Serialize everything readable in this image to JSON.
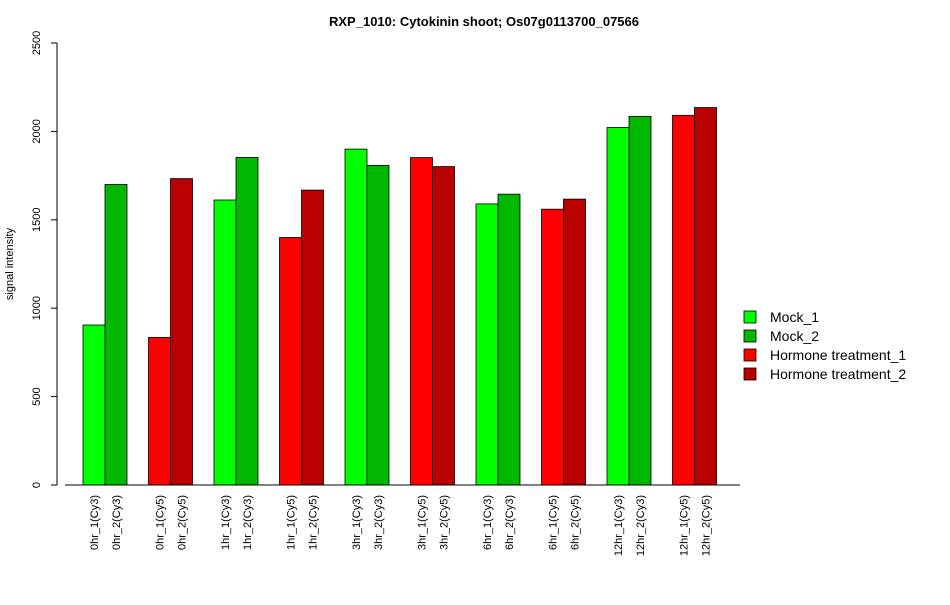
{
  "chart_data": {
    "type": "bar",
    "title": "RXP_1010: Cytokinin shoot; Os07g0113700_07566",
    "xlabel": "",
    "ylabel": "signal intensity",
    "ylim": [
      0,
      2500
    ],
    "yticks": [
      0,
      500,
      1000,
      1500,
      2000,
      2500
    ],
    "grid": false,
    "legend_position": "right",
    "series_styles": [
      {
        "name": "Mock_1",
        "color": "#00ff00"
      },
      {
        "name": "Mock_2",
        "color": "#00b800"
      },
      {
        "name": "Hormone treatment_1",
        "color": "#ff0000"
      },
      {
        "name": "Hormone treatment_2",
        "color": "#b80000"
      }
    ],
    "groups": [
      {
        "bars": [
          {
            "label": "0hr_1(Cy3)",
            "value": 905,
            "series": 0
          },
          {
            "label": "0hr_2(Cy3)",
            "value": 1700,
            "series": 1
          }
        ]
      },
      {
        "bars": [
          {
            "label": "0hr_1(Cy5)",
            "value": 835,
            "series": 2
          },
          {
            "label": "0hr_2(Cy5)",
            "value": 1733,
            "series": 3
          }
        ]
      },
      {
        "bars": [
          {
            "label": "1hr_1(Cy3)",
            "value": 1612,
            "series": 0
          },
          {
            "label": "1hr_2(Cy3)",
            "value": 1853,
            "series": 1
          }
        ]
      },
      {
        "bars": [
          {
            "label": "1hr_1(Cy5)",
            "value": 1400,
            "series": 2
          },
          {
            "label": "1hr_2(Cy5)",
            "value": 1668,
            "series": 3
          }
        ]
      },
      {
        "bars": [
          {
            "label": "3hr_1(Cy3)",
            "value": 1900,
            "series": 0
          },
          {
            "label": "3hr_2(Cy3)",
            "value": 1808,
            "series": 1
          }
        ]
      },
      {
        "bars": [
          {
            "label": "3hr_1(Cy5)",
            "value": 1852,
            "series": 2
          },
          {
            "label": "3hr_2(Cy5)",
            "value": 1801,
            "series": 3
          }
        ]
      },
      {
        "bars": [
          {
            "label": "6hr_1(Cy3)",
            "value": 1590,
            "series": 0
          },
          {
            "label": "6hr_2(Cy3)",
            "value": 1645,
            "series": 1
          }
        ]
      },
      {
        "bars": [
          {
            "label": "6hr_1(Cy5)",
            "value": 1560,
            "series": 2
          },
          {
            "label": "6hr_2(Cy5)",
            "value": 1617,
            "series": 3
          }
        ]
      },
      {
        "bars": [
          {
            "label": "12hr_1(Cy3)",
            "value": 2022,
            "series": 0
          },
          {
            "label": "12hr_2(Cy3)",
            "value": 2085,
            "series": 1
          }
        ]
      },
      {
        "bars": [
          {
            "label": "12hr_1(Cy5)",
            "value": 2091,
            "series": 2
          },
          {
            "label": "12hr_2(Cy5)",
            "value": 2135,
            "series": 3
          }
        ]
      }
    ]
  }
}
